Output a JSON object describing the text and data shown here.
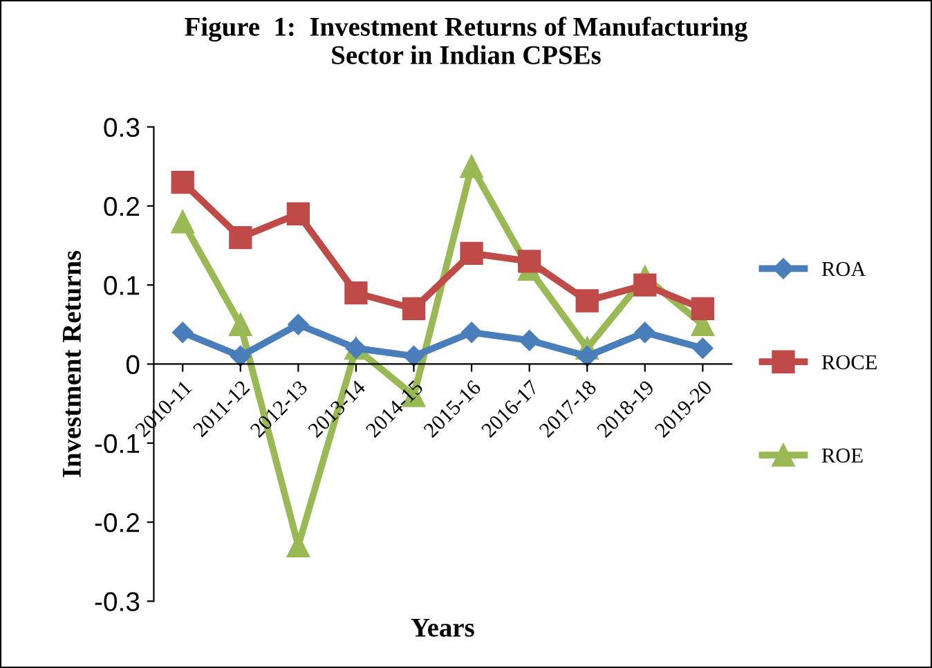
{
  "chart_data": {
    "type": "line",
    "title": "Figure  1:  Investment Returns of Manufacturing\nSector in Indian CPSEs",
    "xlabel": "Years",
    "ylabel": "Investment Returns",
    "categories": [
      "2010-11",
      "2011-12",
      "2012-13",
      "2013-14",
      "2014-15",
      "2015-16",
      "2016-17",
      "2017-18",
      "2018-19",
      "2019-20"
    ],
    "series": [
      {
        "name": "ROA",
        "color": "#4a7ebb",
        "marker": "diamond",
        "values": [
          0.04,
          0.01,
          0.05,
          0.02,
          0.01,
          0.04,
          0.03,
          0.01,
          0.04,
          0.02
        ]
      },
      {
        "name": "ROCE",
        "color": "#be4b48",
        "marker": "square",
        "values": [
          0.23,
          0.16,
          0.19,
          0.09,
          0.07,
          0.14,
          0.13,
          0.08,
          0.1,
          0.07
        ]
      },
      {
        "name": "ROE",
        "color": "#98b954",
        "marker": "triangle",
        "values": [
          0.18,
          0.05,
          -0.23,
          0.02,
          -0.04,
          0.25,
          0.12,
          0.02,
          0.11,
          0.05
        ]
      }
    ],
    "ylim": [
      -0.3,
      0.3
    ],
    "yticks": [
      -0.3,
      -0.2,
      -0.1,
      0,
      0.1,
      0.2,
      0.3
    ],
    "grid": false,
    "legend": "right"
  }
}
